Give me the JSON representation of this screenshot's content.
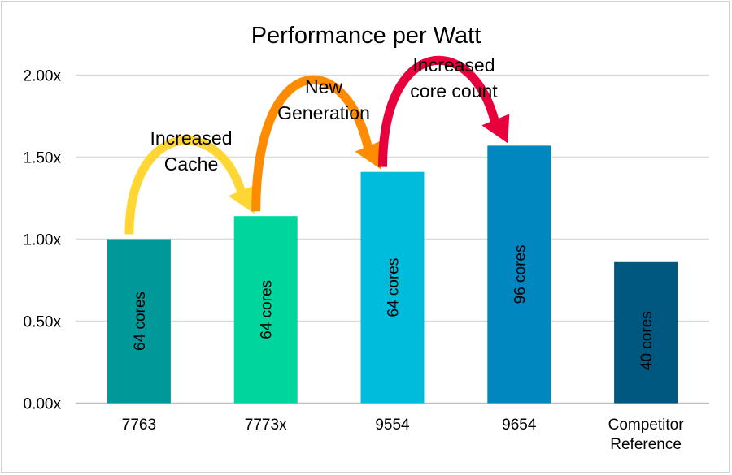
{
  "chart_data": {
    "type": "bar",
    "title": "Performance per Watt",
    "categories": [
      "7763",
      "7773x",
      "9554",
      "9654",
      "Competitor Reference"
    ],
    "values": [
      1.0,
      1.14,
      1.41,
      1.57,
      0.86
    ],
    "bar_labels": [
      "64 cores",
      "64 cores",
      "64 cores",
      "96 cores",
      "40 cores"
    ],
    "colors": [
      "#009999",
      "#00D59E",
      "#00BCDC",
      "#0087BF",
      "#00577F"
    ],
    "ylim": [
      0,
      2
    ],
    "yticks": [
      "0.00x",
      "0.50x",
      "1.00x",
      "1.50x",
      "2.00x"
    ],
    "grid": true,
    "xlabel": "",
    "ylabel": "",
    "annotations": [
      {
        "text": "Increased Cache",
        "from": "7763",
        "to": "7773x",
        "color": "#FFD633"
      },
      {
        "text": "New Generation",
        "from": "7773x",
        "to": "9554",
        "color": "#FF8C00"
      },
      {
        "text": "Increased core count",
        "from": "9554",
        "to": "9654",
        "color": "#E8003D"
      }
    ]
  }
}
